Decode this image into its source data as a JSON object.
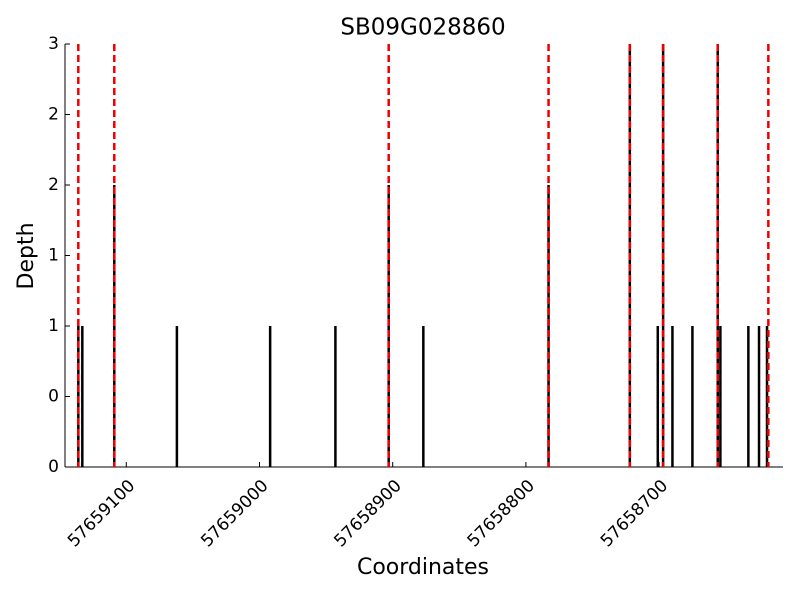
{
  "chart_data": {
    "type": "bar",
    "title": "SB09G028860",
    "x_label": "Coordinates",
    "y_label": "Depth",
    "x": [
      57659136,
      57659133,
      57659109,
      57659062,
      57658992,
      57658943,
      57658903,
      57658877,
      57658783,
      57658722,
      57658701,
      57658697,
      57658690,
      57658675,
      57658656,
      57658654,
      57658633,
      57658625,
      57658619
    ],
    "values": [
      1,
      1,
      2,
      1,
      1,
      1,
      2,
      1,
      2,
      3,
      1,
      3,
      1,
      1,
      3,
      1,
      1,
      1,
      1
    ],
    "color": "#000000",
    "markers": {
      "color": "#ee0000",
      "x": [
        57659136,
        57659109,
        57658903,
        57658783,
        57658722,
        57658697,
        57658656,
        57658618
      ]
    },
    "xlim": [
      57659146,
      57658607
    ],
    "xticks": [
      57659100,
      57659000,
      57658900,
      57658800,
      57658700
    ],
    "ylim": [
      0,
      3
    ],
    "yticks": [
      0,
      {
        "value": 0.5,
        "label": "0"
      },
      1,
      {
        "value": 1.5,
        "label": "1"
      },
      2,
      {
        "value": 2.5,
        "label": "2"
      },
      3
    ]
  }
}
